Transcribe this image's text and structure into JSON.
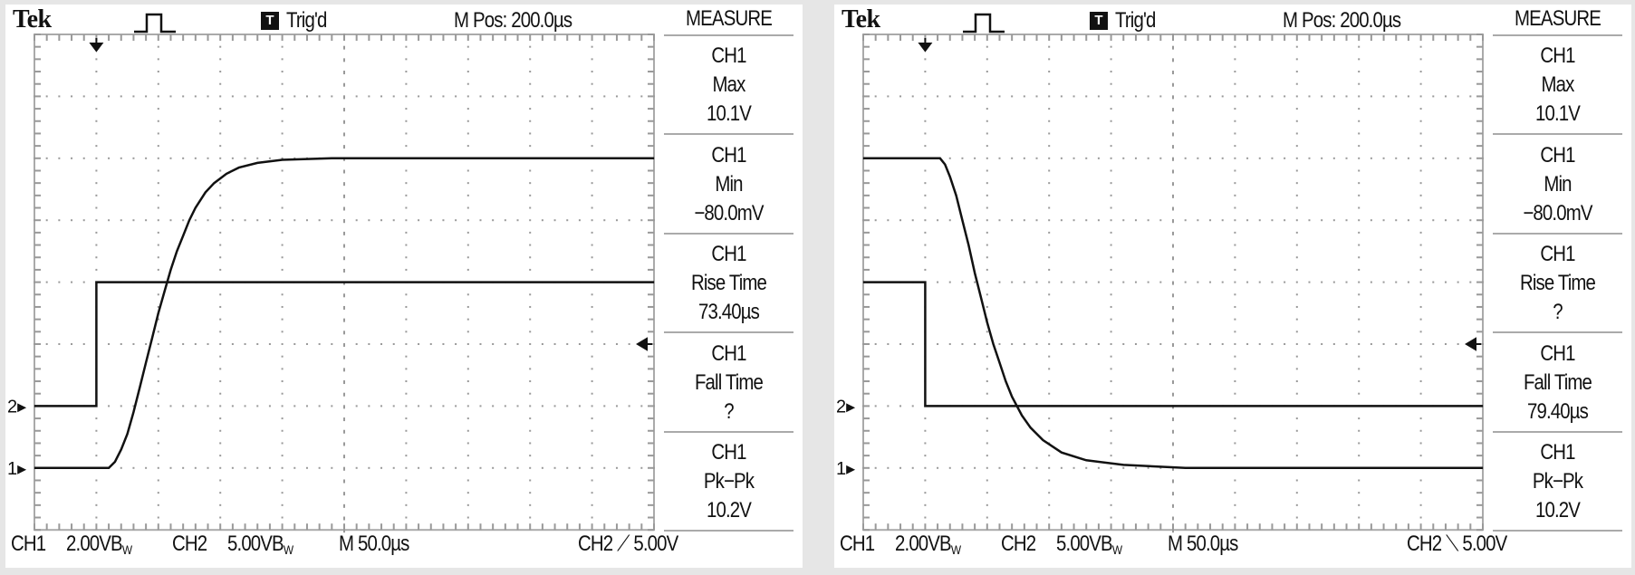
{
  "colors": {
    "background": "#e6e6e6",
    "screen": "#ffffff",
    "trace": "#111111",
    "grid": "#aaaaaa"
  },
  "screens": [
    {
      "brand": "Tek",
      "acq_icon": "pulse-icon",
      "trigger_badge": "T",
      "trigger_status": "Trig'd",
      "main_position": "M Pos: 200.0µs",
      "measure_title": "MEASURE",
      "measurements": [
        {
          "source": "CH1",
          "type": "Max",
          "value": "10.1V"
        },
        {
          "source": "CH1",
          "type": "Min",
          "value": "−80.0mV"
        },
        {
          "source": "CH1",
          "type": "Rise Time",
          "value": "73.40µs"
        },
        {
          "source": "CH1",
          "type": "Fall Time",
          "value": "?"
        },
        {
          "source": "CH1",
          "type": "Pk−Pk",
          "value": "10.2V"
        }
      ],
      "footer": {
        "ch1_label": "CH1",
        "ch1_scale": "2.00V",
        "ch1_bw": "B",
        "ch1_bw_sub": "W",
        "ch2_label": "CH2",
        "ch2_scale": "5.00V",
        "ch2_bw": "B",
        "ch2_bw_sub": "W",
        "timebase": "M 50.0µs",
        "trig_source": "CH2",
        "trig_slope": "rising",
        "trig_slope_glyph": "⟋",
        "trig_level": "5.00V"
      },
      "markers": {
        "ch1": "1",
        "ch2": "2"
      }
    },
    {
      "brand": "Tek",
      "acq_icon": "pulse-icon",
      "trigger_badge": "T",
      "trigger_status": "Trig'd",
      "main_position": "M Pos: 200.0µs",
      "measure_title": "MEASURE",
      "measurements": [
        {
          "source": "CH1",
          "type": "Max",
          "value": "10.1V"
        },
        {
          "source": "CH1",
          "type": "Min",
          "value": "−80.0mV"
        },
        {
          "source": "CH1",
          "type": "Rise Time",
          "value": "?"
        },
        {
          "source": "CH1",
          "type": "Fall Time",
          "value": "79.40µs"
        },
        {
          "source": "CH1",
          "type": "Pk−Pk",
          "value": "10.2V"
        }
      ],
      "footer": {
        "ch1_label": "CH1",
        "ch1_scale": "2.00V",
        "ch1_bw": "B",
        "ch1_bw_sub": "W",
        "ch2_label": "CH2",
        "ch2_scale": "5.00V",
        "ch2_bw": "B",
        "ch2_bw_sub": "W",
        "timebase": "M 50.0µs",
        "trig_source": "CH2",
        "trig_slope": "falling",
        "trig_slope_glyph": "⟍",
        "trig_level": "5.00V"
      },
      "markers": {
        "ch1": "1",
        "ch2": "2"
      }
    }
  ],
  "chart_data": [
    {
      "type": "line",
      "x_unit": "µs",
      "xlim": [
        0,
        500
      ],
      "x_divisions": 10,
      "y_divisions": 8,
      "grid": true,
      "series": [
        {
          "name": "CH1",
          "volts_per_div": 2.0,
          "ground_div_below_center": 3,
          "points": [
            [
              0,
              0
            ],
            [
              60,
              0
            ],
            [
              65,
              0.2
            ],
            [
              70,
              0.6
            ],
            [
              75,
              1.1
            ],
            [
              80,
              1.8
            ],
            [
              85,
              2.6
            ],
            [
              90,
              3.4
            ],
            [
              95,
              4.2
            ],
            [
              100,
              5.0
            ],
            [
              105,
              5.7
            ],
            [
              110,
              6.4
            ],
            [
              115,
              7.0
            ],
            [
              120,
              7.5
            ],
            [
              125,
              8.0
            ],
            [
              130,
              8.4
            ],
            [
              138,
              8.9
            ],
            [
              145,
              9.2
            ],
            [
              155,
              9.5
            ],
            [
              165,
              9.7
            ],
            [
              180,
              9.85
            ],
            [
              200,
              9.95
            ],
            [
              240,
              10
            ],
            [
              500,
              10
            ]
          ]
        },
        {
          "name": "CH2",
          "volts_per_div": 5.0,
          "ground_div_below_center": 2,
          "points": [
            [
              0,
              0
            ],
            [
              50,
              0
            ],
            [
              50,
              10
            ],
            [
              500,
              10
            ]
          ]
        }
      ]
    },
    {
      "type": "line",
      "x_unit": "µs",
      "xlim": [
        0,
        500
      ],
      "x_divisions": 10,
      "y_divisions": 8,
      "grid": true,
      "series": [
        {
          "name": "CH1",
          "volts_per_div": 2.0,
          "ground_div_below_center": 3,
          "points": [
            [
              0,
              10
            ],
            [
              62,
              10
            ],
            [
              66,
              9.8
            ],
            [
              70,
              9.4
            ],
            [
              75,
              8.8
            ],
            [
              80,
              8.0
            ],
            [
              85,
              7.2
            ],
            [
              90,
              6.3
            ],
            [
              95,
              5.5
            ],
            [
              100,
              4.7
            ],
            [
              105,
              4.0
            ],
            [
              110,
              3.4
            ],
            [
              115,
              2.8
            ],
            [
              120,
              2.3
            ],
            [
              128,
              1.7
            ],
            [
              135,
              1.3
            ],
            [
              145,
              0.9
            ],
            [
              160,
              0.5
            ],
            [
              180,
              0.25
            ],
            [
              210,
              0.1
            ],
            [
              260,
              0
            ],
            [
              500,
              0
            ]
          ]
        },
        {
          "name": "CH2",
          "volts_per_div": 5.0,
          "ground_div_below_center": 2,
          "points": [
            [
              0,
              10
            ],
            [
              50,
              10
            ],
            [
              50,
              0
            ],
            [
              500,
              0
            ]
          ]
        }
      ]
    }
  ]
}
